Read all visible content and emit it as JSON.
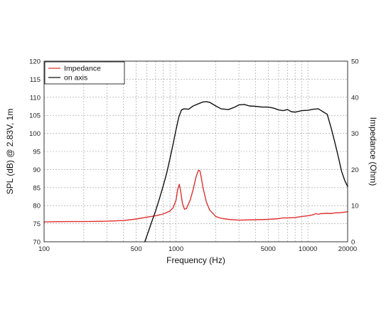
{
  "chart_data": {
    "type": "line",
    "x_scale": "log",
    "xlabel": "Frequency (Hz)",
    "ylabel_left": "SPL (dB) @ 2.83V, 1m",
    "ylabel_right": "Impedance (Ohm)",
    "xlim": [
      100,
      20000
    ],
    "ylim_left": [
      70,
      120
    ],
    "ylim_right": [
      0,
      50
    ],
    "x_ticks": [
      {
        "value": 100,
        "label": "100"
      },
      {
        "value": 500,
        "label": "500"
      },
      {
        "value": 1000,
        "label": "1000"
      },
      {
        "value": 5000,
        "label": "5000"
      },
      {
        "value": 10000,
        "label": "10000"
      },
      {
        "value": 20000,
        "label": "20000"
      }
    ],
    "y_ticks_left": [
      {
        "value": 70,
        "label": "70"
      },
      {
        "value": 75,
        "label": "75"
      },
      {
        "value": 80,
        "label": "80"
      },
      {
        "value": 85,
        "label": "85"
      },
      {
        "value": 90,
        "label": "90"
      },
      {
        "value": 95,
        "label": "95"
      },
      {
        "value": 100,
        "label": "100"
      },
      {
        "value": 105,
        "label": "105"
      },
      {
        "value": 110,
        "label": "110"
      },
      {
        "value": 115,
        "label": "115"
      },
      {
        "value": 120,
        "label": "120"
      }
    ],
    "y_ticks_right": [
      {
        "value": 0,
        "label": "0"
      },
      {
        "value": 10,
        "label": "10"
      },
      {
        "value": 20,
        "label": "20"
      },
      {
        "value": 30,
        "label": "30"
      },
      {
        "value": 40,
        "label": "40"
      },
      {
        "value": 50,
        "label": "50"
      }
    ],
    "grid": true,
    "legend_position": "top-left",
    "series": [
      {
        "name": "Impedance",
        "axis": "right",
        "color": "#e03030",
        "x": [
          100,
          150,
          200,
          300,
          400,
          500,
          600,
          700,
          800,
          900,
          950,
          1000,
          1030,
          1060,
          1090,
          1120,
          1160,
          1200,
          1280,
          1350,
          1420,
          1480,
          1520,
          1560,
          1600,
          1700,
          1800,
          2000,
          2200,
          2500,
          3000,
          4000,
          5000,
          6000,
          6500,
          7000,
          8000,
          9000,
          10000,
          11000,
          11500,
          12000,
          12500,
          13000,
          14000,
          15000,
          16000,
          17000,
          18000,
          19000,
          20000
        ],
        "y": [
          5.5,
          5.6,
          5.6,
          5.7,
          5.9,
          6.3,
          6.8,
          7.2,
          7.7,
          8.5,
          9.4,
          11.5,
          14.5,
          15.9,
          13.5,
          10.5,
          9.0,
          9.2,
          11.5,
          14.5,
          18.0,
          19.8,
          19.6,
          17.5,
          15.0,
          11.0,
          8.8,
          7.0,
          6.5,
          6.2,
          6.0,
          6.1,
          6.2,
          6.4,
          6.6,
          6.6,
          6.7,
          7.0,
          7.2,
          7.5,
          7.8,
          7.6,
          7.8,
          7.8,
          7.9,
          7.8,
          8.0,
          8.0,
          8.1,
          8.2,
          8.3
        ]
      },
      {
        "name": "on axis",
        "axis": "left",
        "color": "#111111",
        "x": [
          580,
          620,
          650,
          700,
          750,
          800,
          850,
          900,
          950,
          1000,
          1050,
          1100,
          1150,
          1250,
          1350,
          1500,
          1600,
          1700,
          1800,
          2000,
          2200,
          2500,
          2800,
          3000,
          3300,
          3600,
          4000,
          4500,
          5000,
          5500,
          6000,
          6500,
          7000,
          7500,
          8000,
          9000,
          10000,
          11000,
          12000,
          12500,
          13000,
          14000,
          15000,
          16000,
          17000,
          18000,
          19000,
          20000
        ],
        "y": [
          70,
          73,
          75.2,
          78.5,
          82,
          85.5,
          89,
          93,
          97,
          101,
          104.5,
          106.5,
          106.8,
          106.7,
          107.6,
          108.3,
          108.7,
          108.8,
          108.6,
          107.6,
          106.8,
          106.6,
          107.3,
          107.9,
          108.0,
          107.6,
          107.5,
          107.3,
          107.3,
          107.0,
          106.5,
          106.3,
          106.6,
          106.0,
          105.9,
          106.3,
          106.4,
          106.7,
          106.8,
          106.4,
          106.0,
          105.3,
          101.5,
          97.5,
          93.5,
          89.5,
          87.0,
          85.3
        ]
      }
    ]
  }
}
